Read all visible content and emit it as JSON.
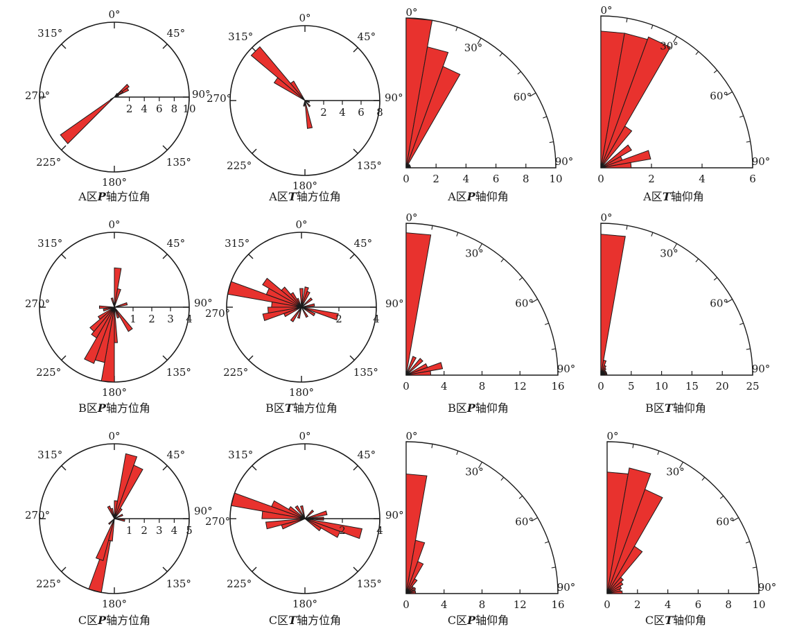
{
  "figure": {
    "bar_color": "#e8322e",
    "outline_color": "#1a1a1a",
    "direction_labels": [
      "0°",
      "45°",
      "90°",
      "135°",
      "180°",
      "225°",
      "270°",
      "315°"
    ],
    "dip_labels": [
      "0°",
      "30°",
      "60°",
      "90°"
    ]
  },
  "chart_data": [
    {
      "id": "a_p_az",
      "type": "rose",
      "title": "A区P轴方位角",
      "caption_parts": [
        "A区",
        "P",
        "轴方位角"
      ],
      "radial_max": 10,
      "radial_ticks": [
        2,
        4,
        6,
        8,
        10
      ],
      "radial_tick_labels": [
        "2",
        "4",
        "6",
        "8",
        "10"
      ],
      "bin_width_deg": 10,
      "bins": [
        [
          50,
          2.4
        ],
        [
          60,
          2.1
        ],
        [
          55,
          1.3
        ],
        [
          40,
          0.6
        ],
        [
          70,
          0.6
        ],
        [
          230,
          8.8
        ],
        [
          235,
          0.6
        ]
      ]
    },
    {
      "id": "a_t_az",
      "type": "rose",
      "title": "A区T轴方位角",
      "caption_parts": [
        "A区",
        "T",
        "轴方位角"
      ],
      "radial_max": 8,
      "radial_ticks": [
        2,
        4,
        6,
        8
      ],
      "radial_tick_labels": [
        "2",
        "4",
        "6",
        "8"
      ],
      "bin_width_deg": 10,
      "bins": [
        [
          315,
          7.5
        ],
        [
          305,
          3.8
        ],
        [
          325,
          2.4
        ],
        [
          170,
          3.0
        ],
        [
          140,
          0.8
        ],
        [
          190,
          0.6
        ],
        [
          110,
          0.5
        ]
      ]
    },
    {
      "id": "a_p_dip",
      "type": "quarter-rose",
      "title": "A区P轴仰角",
      "caption_parts": [
        "A区",
        "P",
        "轴仰角"
      ],
      "radial_max": 10,
      "radial_ticks": [
        0,
        2,
        4,
        6,
        8,
        10
      ],
      "radial_tick_labels": [
        "0",
        "2",
        "4",
        "6",
        "8",
        "10"
      ],
      "bin_width_deg": 10,
      "bins": [
        [
          5,
          10.3
        ],
        [
          15,
          8.2
        ],
        [
          25,
          7.2
        ],
        [
          45,
          0.3
        ],
        [
          60,
          0.3
        ],
        [
          80,
          0.3
        ]
      ]
    },
    {
      "id": "a_t_dip",
      "type": "quarter-rose",
      "title": "A区T轴仰角",
      "caption_parts": [
        "A区",
        "T",
        "轴仰角"
      ],
      "radial_max": 6,
      "radial_ticks": [
        0,
        2,
        4,
        6
      ],
      "radial_tick_labels": [
        "0",
        "2",
        "4",
        "6"
      ],
      "bin_width_deg": 10,
      "bins": [
        [
          5,
          5.4
        ],
        [
          15,
          5.4
        ],
        [
          25,
          5.5
        ],
        [
          35,
          1.9
        ],
        [
          55,
          1.4
        ],
        [
          65,
          0.9
        ],
        [
          75,
          2.0
        ],
        [
          85,
          1.2
        ]
      ]
    },
    {
      "id": "b_p_az",
      "type": "rose",
      "title": "B区P轴方位角",
      "caption_parts": [
        "B区",
        "P",
        "轴方位角"
      ],
      "radial_max": 4,
      "radial_ticks": [
        1,
        2,
        3,
        4
      ],
      "radial_tick_labels": [
        "1",
        "2",
        "3",
        "4"
      ],
      "bin_width_deg": 10,
      "bins": [
        [
          5,
          2.1
        ],
        [
          15,
          1.0
        ],
        [
          75,
          0.7
        ],
        [
          145,
          1.5
        ],
        [
          160,
          0.6
        ],
        [
          180,
          1.9
        ],
        [
          185,
          4.1
        ],
        [
          195,
          3.0
        ],
        [
          205,
          3.2
        ],
        [
          215,
          1.9
        ],
        [
          225,
          1.7
        ],
        [
          235,
          1.0
        ],
        [
          255,
          0.6
        ],
        [
          270,
          0.8
        ],
        [
          345,
          0.5
        ]
      ]
    },
    {
      "id": "b_t_az",
      "type": "rose",
      "title": "B区T轴方位角",
      "caption_parts": [
        "B区",
        "T",
        "轴方位角"
      ],
      "radial_max": 4,
      "radial_ticks": [
        2,
        4
      ],
      "radial_tick_labels": [
        "2",
        "4"
      ],
      "bin_width_deg": 10,
      "bins": [
        [
          285,
          4.0
        ],
        [
          295,
          2.0
        ],
        [
          305,
          2.4
        ],
        [
          315,
          1.4
        ],
        [
          325,
          0.9
        ],
        [
          335,
          0.5
        ],
        [
          0,
          1.0
        ],
        [
          15,
          1.1
        ],
        [
          25,
          0.9
        ],
        [
          50,
          0.7
        ],
        [
          80,
          0.7
        ],
        [
          105,
          2.0
        ],
        [
          120,
          0.8
        ],
        [
          150,
          0.6
        ],
        [
          195,
          0.6
        ],
        [
          215,
          0.9
        ],
        [
          255,
          2.1
        ],
        [
          265,
          1.8
        ],
        [
          275,
          1.6
        ],
        [
          245,
          1.0
        ]
      ]
    },
    {
      "id": "b_p_dip",
      "type": "quarter-rose",
      "title": "B区P轴仰角",
      "caption_parts": [
        "B区",
        "P",
        "轴仰角"
      ],
      "radial_max": 16,
      "radial_ticks": [
        0,
        4,
        8,
        12,
        16
      ],
      "radial_tick_labels": [
        "0",
        "4",
        "8",
        "12",
        "16"
      ],
      "bin_width_deg": 10,
      "bins": [
        [
          5,
          15.0
        ],
        [
          25,
          2.1
        ],
        [
          45,
          2.3
        ],
        [
          65,
          2.4
        ],
        [
          75,
          3.9
        ],
        [
          85,
          2.6
        ]
      ]
    },
    {
      "id": "b_t_dip",
      "type": "quarter-rose",
      "title": "B区T轴仰角",
      "caption_parts": [
        "B区",
        "T",
        "轴仰角"
      ],
      "radial_max": 25,
      "radial_ticks": [
        0,
        5,
        10,
        15,
        20,
        25
      ],
      "radial_tick_labels": [
        "0",
        "5",
        "10",
        "15",
        "20",
        "25"
      ],
      "bin_width_deg": 10,
      "bins": [
        [
          5,
          23.2
        ],
        [
          15,
          2.5
        ],
        [
          25,
          1.7
        ],
        [
          35,
          1.3
        ],
        [
          45,
          1.0
        ],
        [
          55,
          1.0
        ],
        [
          65,
          1.0
        ],
        [
          75,
          1.0
        ],
        [
          85,
          1.0
        ]
      ]
    },
    {
      "id": "c_p_az",
      "type": "rose",
      "title": "C区P轴方位角",
      "caption_parts": [
        "C区",
        "P",
        "轴方位角"
      ],
      "radial_max": 5,
      "radial_ticks": [
        1,
        2,
        3,
        4,
        5
      ],
      "radial_tick_labels": [
        "1",
        "2",
        "3",
        "4",
        "5"
      ],
      "bin_width_deg": 10,
      "bins": [
        [
          15,
          4.4
        ],
        [
          25,
          3.8
        ],
        [
          5,
          1.2
        ],
        [
          35,
          0.8
        ],
        [
          195,
          5.3
        ],
        [
          200,
          2.9
        ],
        [
          190,
          1.5
        ],
        [
          225,
          0.5
        ],
        [
          335,
          0.9
        ],
        [
          345,
          0.7
        ],
        [
          65,
          0.6
        ],
        [
          100,
          0.7
        ]
      ]
    },
    {
      "id": "c_t_az",
      "type": "rose",
      "title": "C区T轴方位角",
      "caption_parts": [
        "C区",
        "T",
        "轴方位角"
      ],
      "radial_max": 4,
      "radial_ticks": [
        2,
        4
      ],
      "radial_tick_labels": [
        "2",
        "4"
      ],
      "bin_width_deg": 10,
      "bins": [
        [
          285,
          4.9
        ],
        [
          295,
          1.9
        ],
        [
          305,
          1.0
        ],
        [
          325,
          0.8
        ],
        [
          345,
          0.7
        ],
        [
          45,
          0.6
        ],
        [
          75,
          1.2
        ],
        [
          90,
          1.0
        ],
        [
          105,
          3.1
        ],
        [
          115,
          2.0
        ],
        [
          125,
          1.0
        ],
        [
          250,
          1.3
        ],
        [
          260,
          2.1
        ],
        [
          275,
          2.3
        ]
      ]
    },
    {
      "id": "c_p_dip",
      "type": "quarter-rose",
      "title": "C区P轴仰角",
      "caption_parts": [
        "C区",
        "P",
        "轴仰角"
      ],
      "radial_max": 16,
      "radial_ticks": [
        0,
        4,
        8,
        12,
        16
      ],
      "radial_tick_labels": [
        "0",
        "4",
        "8",
        "12",
        "16"
      ],
      "bin_width_deg": 10,
      "bins": [
        [
          5,
          12.6
        ],
        [
          15,
          5.7
        ],
        [
          25,
          3.6
        ],
        [
          35,
          1.8
        ],
        [
          45,
          1.0
        ],
        [
          60,
          1.1
        ],
        [
          75,
          1.0
        ],
        [
          85,
          1.0
        ]
      ]
    },
    {
      "id": "c_t_dip",
      "type": "quarter-rose",
      "title": "C区T轴仰角",
      "caption_parts": [
        "C区",
        "T",
        "轴仰角"
      ],
      "radial_max": 10,
      "radial_ticks": [
        0,
        2,
        4,
        6,
        8,
        10
      ],
      "radial_tick_labels": [
        "0",
        "2",
        "4",
        "6",
        "8",
        "10"
      ],
      "bin_width_deg": 10,
      "bins": [
        [
          5,
          8.0
        ],
        [
          15,
          8.4
        ],
        [
          25,
          7.3
        ],
        [
          35,
          3.6
        ],
        [
          45,
          1.4
        ],
        [
          55,
          1.2
        ],
        [
          65,
          1.0
        ],
        [
          75,
          0.9
        ],
        [
          85,
          1.0
        ]
      ]
    }
  ]
}
